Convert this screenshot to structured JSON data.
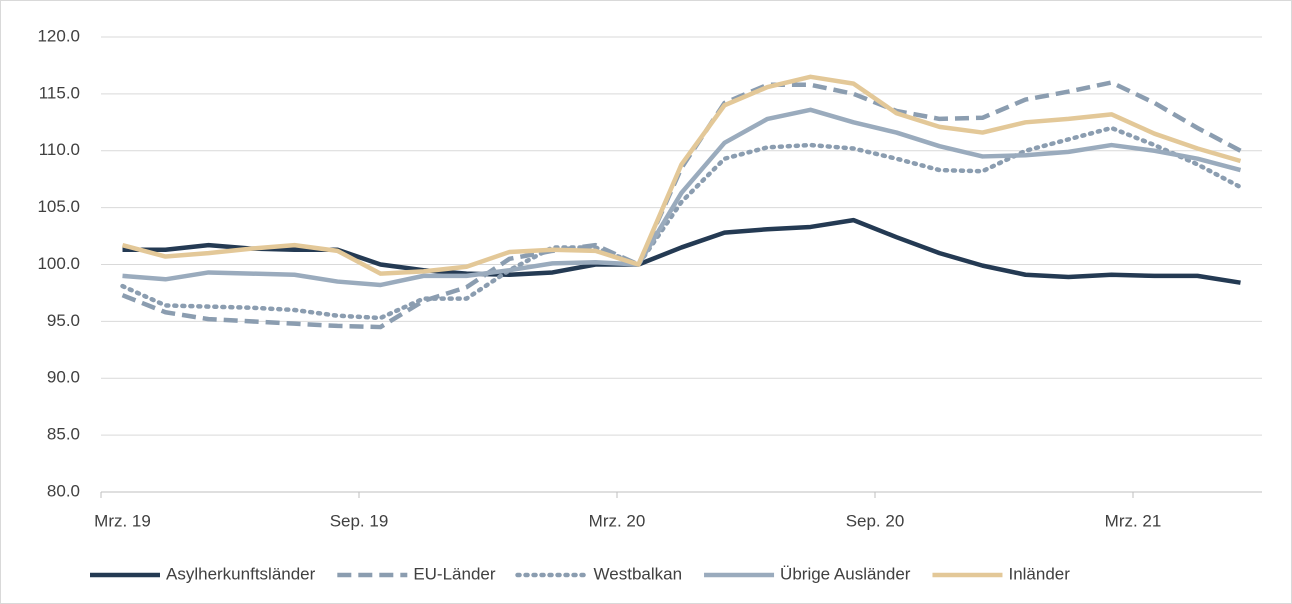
{
  "chart_data": {
    "type": "line",
    "categories": [
      "Mrz. 19",
      null,
      null,
      null,
      null,
      null,
      "Sep. 19",
      null,
      null,
      null,
      null,
      null,
      "Mrz. 20",
      null,
      null,
      null,
      null,
      null,
      "Sep. 20",
      null,
      null,
      null,
      null,
      null,
      "Mrz. 21",
      null,
      null
    ],
    "series": [
      {
        "name": "Asylherkunftsländer",
        "color": "#243a53",
        "dash": "solid",
        "values": [
          101.3,
          101.3,
          101.7,
          101.4,
          101.3,
          101.3,
          100.0,
          99.5,
          99.2,
          99.1,
          99.3,
          100.0,
          100.0,
          101.5,
          102.8,
          103.1,
          103.3,
          103.9,
          102.4,
          101.0,
          99.9,
          99.1,
          98.9,
          99.1,
          99.0,
          99.0,
          98.4
        ]
      },
      {
        "name": "EU-Länder",
        "color": "#8b9db0",
        "dash": "dashed",
        "values": [
          97.3,
          95.8,
          95.2,
          95.0,
          94.8,
          94.6,
          94.5,
          96.8,
          98.0,
          100.5,
          101.2,
          101.7,
          100.0,
          108.5,
          114.2,
          115.8,
          115.8,
          115.0,
          113.5,
          112.8,
          112.9,
          114.5,
          115.2,
          116.0,
          114.2,
          112.0,
          110.0
        ]
      },
      {
        "name": "Westbalkan",
        "color": "#8b9db0",
        "dash": "dotted",
        "values": [
          98.1,
          96.4,
          96.3,
          96.2,
          96.0,
          95.5,
          95.3,
          97.0,
          97.0,
          99.5,
          101.5,
          101.5,
          100.0,
          105.5,
          109.3,
          110.3,
          110.5,
          110.2,
          109.3,
          108.3,
          108.2,
          110.0,
          111.0,
          112.0,
          110.5,
          108.8,
          106.8
        ]
      },
      {
        "name": "Übrige Ausländer",
        "color": "#9aabbd",
        "dash": "solid",
        "values": [
          99.0,
          98.7,
          99.3,
          99.2,
          99.1,
          98.5,
          98.2,
          99.0,
          99.0,
          99.5,
          100.1,
          100.2,
          100.0,
          106.3,
          110.7,
          112.8,
          113.6,
          112.5,
          111.6,
          110.4,
          109.5,
          109.6,
          109.9,
          110.5,
          110.0,
          109.3,
          108.3
        ]
      },
      {
        "name": "Inländer",
        "color": "#e3c898",
        "dash": "solid",
        "values": [
          101.7,
          100.7,
          101.0,
          101.4,
          101.7,
          101.2,
          99.2,
          99.4,
          99.8,
          101.1,
          101.3,
          101.2,
          100.0,
          108.8,
          114.0,
          115.6,
          116.5,
          115.9,
          113.3,
          112.1,
          111.6,
          112.5,
          112.8,
          113.2,
          111.5,
          110.2,
          109.1
        ]
      }
    ],
    "ylim": [
      80,
      120
    ],
    "yticks": [
      {
        "value": 80,
        "label": "80.0"
      },
      {
        "value": 85,
        "label": "85.0"
      },
      {
        "value": 90,
        "label": "90.0"
      },
      {
        "value": 95,
        "label": "95.0"
      },
      {
        "value": 100,
        "label": "100.0"
      },
      {
        "value": 105,
        "label": "105.0"
      },
      {
        "value": 110,
        "label": "110.0"
      },
      {
        "value": 115,
        "label": "115.0"
      },
      {
        "value": 120,
        "label": "120.0"
      }
    ],
    "grid": true,
    "legend": "bottom"
  }
}
